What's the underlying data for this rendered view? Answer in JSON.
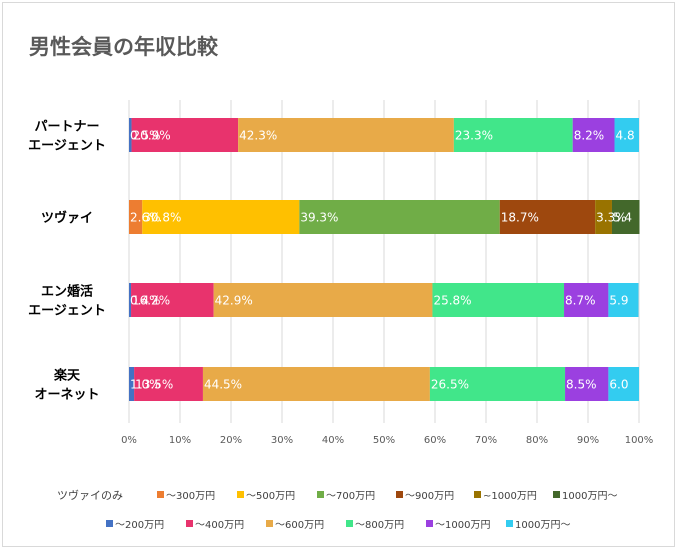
{
  "chart_data": {
    "type": "bar",
    "orientation": "horizontal",
    "stacked": "percent",
    "title": "男性会員の年収比較",
    "xlim": [
      0,
      100
    ],
    "x_ticks": [
      "0%",
      "10%",
      "20%",
      "30%",
      "40%",
      "50%",
      "60%",
      "70%",
      "80%",
      "90%",
      "100%"
    ],
    "grid": true,
    "legend_position": "bottom",
    "categories": [
      [
        "パートナー",
        "エージェント"
      ],
      [
        "ツヴァイ"
      ],
      [
        "エン婚活",
        "エージェント"
      ],
      [
        "楽天",
        "オーネット"
      ]
    ],
    "bars": [
      {
        "segments": [
          {
            "value": 0.5,
            "label": "0.5%",
            "color": "#4472c4",
            "text_color": "#ffffff"
          },
          {
            "value": 20.9,
            "label": "20.9%",
            "color": "#e8336d",
            "text_color": "#ffffff"
          },
          {
            "value": 42.3,
            "label": "42.3%",
            "color": "#e8aa48",
            "text_color": "#ffffff"
          },
          {
            "value": 23.3,
            "label": "23.3%",
            "color": "#41e68a",
            "text_color": "#ffffff"
          },
          {
            "value": 8.2,
            "label": "8.2%",
            "color": "#9b40e0",
            "text_color": "#ffffff"
          },
          {
            "value": 4.8,
            "label": "4.8",
            "color": "#33ccf0",
            "text_color": "#ffffff"
          }
        ]
      },
      {
        "segments": [
          {
            "value": 2.6,
            "label": "2.6%",
            "color": "#ed7d31",
            "text_color": "#ffffff"
          },
          {
            "value": 30.8,
            "label": "30.8%",
            "color": "#ffc000",
            "text_color": "#ffffff"
          },
          {
            "value": 39.3,
            "label": "39.3%",
            "color": "#70ad47",
            "text_color": "#ffffff"
          },
          {
            "value": 18.7,
            "label": "18.7%",
            "color": "#9e480e",
            "text_color": "#ffffff"
          },
          {
            "value": 3.3,
            "label": "3.3%",
            "color": "#997300",
            "text_color": "#ffffff"
          },
          {
            "value": 5.4,
            "label": "5.4",
            "color": "#43682b",
            "text_color": "#ffffff"
          }
        ]
      },
      {
        "segments": [
          {
            "value": 0.4,
            "label": "0.4%",
            "color": "#4472c4",
            "text_color": "#ffffff"
          },
          {
            "value": 16.2,
            "label": "16.2%",
            "color": "#e8336d",
            "text_color": "#ffffff"
          },
          {
            "value": 42.9,
            "label": "42.9%",
            "color": "#e8aa48",
            "text_color": "#ffffff"
          },
          {
            "value": 25.8,
            "label": "25.8%",
            "color": "#41e68a",
            "text_color": "#ffffff"
          },
          {
            "value": 8.7,
            "label": "8.7%",
            "color": "#9b40e0",
            "text_color": "#ffffff"
          },
          {
            "value": 5.9,
            "label": "5.9",
            "color": "#33ccf0",
            "text_color": "#ffffff"
          }
        ]
      },
      {
        "segments": [
          {
            "value": 1.0,
            "label": "1.0%",
            "color": "#4472c4",
            "text_color": "#ffffff"
          },
          {
            "value": 13.5,
            "label": "13.5%",
            "color": "#e8336d",
            "text_color": "#ffffff"
          },
          {
            "value": 44.5,
            "label": "44.5%",
            "color": "#e8aa48",
            "text_color": "#ffffff"
          },
          {
            "value": 26.5,
            "label": "26.5%",
            "color": "#41e68a",
            "text_color": "#ffffff"
          },
          {
            "value": 8.5,
            "label": "8.5%",
            "color": "#9b40e0",
            "text_color": "#ffffff"
          },
          {
            "value": 6.0,
            "label": "6.0",
            "color": "#33ccf0",
            "text_color": "#ffffff"
          }
        ]
      }
    ],
    "legend": {
      "row1_title": "ツヴァイのみ",
      "row1": [
        {
          "name": "～300万円",
          "color": "#ed7d31"
        },
        {
          "name": "～500万円",
          "color": "#ffc000"
        },
        {
          "name": "～700万円",
          "color": "#70ad47"
        },
        {
          "name": "～900万円",
          "color": "#9e480e"
        },
        {
          "name": "~1000万円",
          "color": "#997300"
        },
        {
          "name": "1000万円～",
          "color": "#43682b"
        }
      ],
      "row2": [
        {
          "name": "～200万円",
          "color": "#4472c4"
        },
        {
          "name": "～400万円",
          "color": "#e8336d"
        },
        {
          "name": "～600万円",
          "color": "#e8aa48"
        },
        {
          "name": "～800万円",
          "color": "#41e68a"
        },
        {
          "name": "～1000万円",
          "color": "#9b40e0"
        },
        {
          "name": "1000万円～",
          "color": "#33ccf0"
        }
      ]
    }
  }
}
